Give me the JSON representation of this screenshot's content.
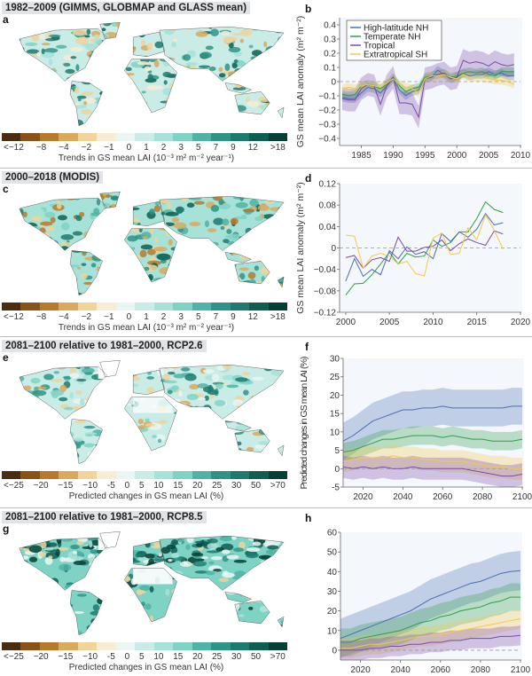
{
  "colors": {
    "high_latitude_nh": "#4a6fb5",
    "temperate_nh": "#2e9e4a",
    "tropical": "#7a4aa8",
    "extratropical_sh": "#f2c94c",
    "title_bg": "#e1e4e7",
    "colorbar": [
      "#4a2c10",
      "#8a5214",
      "#b87a2a",
      "#d9a95c",
      "#f0d49a",
      "#f7ecd4",
      "#eaf6f3",
      "#c9ece6",
      "#a7e2d8",
      "#7fd3c5",
      "#4fb3a5",
      "#2f9488",
      "#1d7a6e",
      "#0e5e52",
      "#063f35"
    ]
  },
  "rows": [
    {
      "title": "1982–2009 (GIMMS, GLOBMAP and GLASS mean)",
      "map_label": "a",
      "chart_label": "b",
      "colorbar_ticks": [
        "<−12",
        "−8",
        "−4",
        "−2",
        "−1",
        "0",
        "1",
        "2",
        "3",
        "5",
        "7",
        "9",
        "12",
        ">18"
      ],
      "colorbar_caption": "Trends in GS mean LAI (10⁻³ m² m⁻² year⁻¹)"
    },
    {
      "title": "2000–2018 (MODIS)",
      "map_label": "c",
      "chart_label": "d",
      "colorbar_ticks": [
        "<−12",
        "−8",
        "−4",
        "−2",
        "−1",
        "0",
        "1",
        "2",
        "3",
        "5",
        "7",
        "9",
        "12",
        ">18"
      ],
      "colorbar_caption": "Trends in GS mean LAI (10⁻³ m² m⁻² year⁻¹)"
    },
    {
      "title": "2081–2100 relative to 1981–2000, RCP2.6",
      "map_label": "e",
      "chart_label": "f",
      "colorbar_ticks": [
        "<−25",
        "−20",
        "−15",
        "−10",
        "-5",
        "0",
        "5",
        "10",
        "15",
        "20",
        "25",
        "30",
        "50",
        ">70"
      ],
      "colorbar_caption": "Predicted changes in GS mean LAI (%)"
    },
    {
      "title": "2081–2100 relative to 1981–2000, RCP8.5",
      "map_label": "g",
      "chart_label": "h",
      "colorbar_ticks": [
        "<−25",
        "−20",
        "−15",
        "−10",
        "-5",
        "0",
        "5",
        "10",
        "15",
        "20",
        "25",
        "30",
        "50",
        ">70"
      ],
      "colorbar_caption": "Predicted changes in GS mean LAI (%)"
    }
  ],
  "chart_data": [
    {
      "id": "b",
      "type": "line",
      "ylabel": "GS mean LAI anomaly (m² m⁻²)",
      "xlim": [
        1982,
        2010
      ],
      "ylim": [
        -0.45,
        0.45
      ],
      "xticks": [
        1985,
        1990,
        1995,
        2000,
        2005,
        2010
      ],
      "yticks": [
        0.4,
        0.3,
        0.2,
        0.1,
        0,
        -0.1,
        -0.2,
        -0.3,
        -0.4
      ],
      "ytick_labels": [
        "0.4",
        "0.3",
        "0.2",
        "0.1",
        "0",
        "−0.1",
        "−0.2",
        "−0.3",
        "−0.4"
      ],
      "legend": "top-left",
      "zero_line": true,
      "x": [
        1982,
        1983,
        1984,
        1985,
        1986,
        1987,
        1988,
        1989,
        1990,
        1991,
        1992,
        1993,
        1994,
        1995,
        1996,
        1997,
        1998,
        1999,
        2000,
        2001,
        2002,
        2003,
        2004,
        2005,
        2006,
        2007,
        2008,
        2009
      ],
      "series": [
        {
          "name": "High-latitude NH",
          "color_key": "high_latitude_nh",
          "band": 0.03,
          "values": [
            -0.11,
            -0.12,
            -0.12,
            -0.08,
            -0.04,
            -0.05,
            -0.08,
            -0.03,
            0.02,
            -0.06,
            -0.1,
            -0.07,
            -0.06,
            0.02,
            0.03,
            0.08,
            0.05,
            0.02,
            0.03,
            0.06,
            0.04,
            0.05,
            0.05,
            0.07,
            0.05,
            0.06,
            0.04,
            0.04
          ]
        },
        {
          "name": "Temperate NH",
          "color_key": "temperate_nh",
          "band": 0.03,
          "values": [
            -0.09,
            -0.1,
            -0.09,
            -0.03,
            -0.02,
            -0.03,
            -0.05,
            -0.02,
            0.03,
            -0.03,
            -0.07,
            -0.05,
            -0.04,
            0.03,
            0.04,
            0.05,
            0.06,
            0.03,
            0.04,
            0.06,
            0.07,
            0.06,
            0.07,
            0.05,
            0.04,
            0.07,
            0.07,
            0.07
          ]
        },
        {
          "name": "Tropical",
          "color_key": "tropical",
          "band": 0.08,
          "values": [
            -0.12,
            -0.13,
            -0.13,
            -0.05,
            -0.02,
            -0.03,
            -0.16,
            -0.03,
            0.03,
            -0.15,
            -0.15,
            -0.16,
            -0.25,
            0.02,
            0.03,
            0.05,
            0.06,
            0.02,
            0.03,
            0.15,
            0.13,
            0.14,
            0.13,
            0.11,
            0.14,
            0.12,
            0.11,
            0.12
          ]
        },
        {
          "name": "Extratropical SH",
          "color_key": "extratropical_sh",
          "band": 0.03,
          "values": [
            -0.05,
            -0.04,
            -0.05,
            -0.03,
            -0.02,
            -0.03,
            -0.04,
            -0.01,
            0.02,
            -0.02,
            -0.04,
            -0.05,
            -0.08,
            0.02,
            0.04,
            0.04,
            0.05,
            0.03,
            0.02,
            0.05,
            0.03,
            0.03,
            0.03,
            0.02,
            0.01,
            0.01,
            0.0,
            -0.02
          ]
        }
      ]
    },
    {
      "id": "d",
      "type": "line",
      "ylabel": "GS mean LAI anomaly (m² m⁻²)",
      "xlim": [
        1999.3,
        2020
      ],
      "ylim": [
        -0.12,
        0.12
      ],
      "xticks": [
        2000,
        2005,
        2010,
        2015,
        2020
      ],
      "yticks": [
        0.12,
        0.08,
        0.04,
        0,
        -0.04,
        -0.08,
        -0.12
      ],
      "ytick_labels": [
        "0.12",
        "0.08",
        "0.04",
        "0",
        "−0.04",
        "−0.08",
        "−0.12"
      ],
      "zero_line": true,
      "x": [
        2000,
        2001,
        2002,
        2003,
        2004,
        2005,
        2006,
        2007,
        2008,
        2009,
        2010,
        2011,
        2012,
        2013,
        2014,
        2015,
        2016,
        2017,
        2018
      ],
      "series": [
        {
          "color_key": "temperate_nh",
          "values": [
            -0.088,
            -0.067,
            -0.066,
            -0.05,
            -0.03,
            -0.008,
            -0.03,
            -0.01,
            -0.017,
            -0.015,
            0.015,
            0.003,
            0.01,
            0.03,
            0.03,
            0.055,
            0.086,
            0.072,
            0.066
          ]
        },
        {
          "color_key": "high_latitude_nh",
          "values": [
            -0.062,
            -0.02,
            -0.053,
            -0.04,
            -0.05,
            -0.005,
            -0.02,
            0.002,
            -0.012,
            -0.007,
            -0.02,
            0.027,
            0.012,
            0.03,
            0.02,
            0.035,
            0.064,
            0.043,
            0.047
          ]
        },
        {
          "color_key": "tropical",
          "values": [
            -0.018,
            -0.014,
            -0.038,
            -0.022,
            -0.018,
            -0.025,
            0.02,
            -0.006,
            -0.006,
            0.001,
            0.003,
            0.015,
            -0.005,
            0.008,
            0.017,
            0.01,
            0.005,
            0.032,
            0.026
          ]
        },
        {
          "color_key": "extratropical_sh",
          "values": [
            0.024,
            0.022,
            -0.038,
            -0.015,
            -0.01,
            -0.015,
            -0.03,
            -0.025,
            -0.048,
            -0.052,
            0.018,
            0.028,
            -0.012,
            -0.01,
            0.038,
            0.015,
            0.062,
            0.033,
            -0.002
          ]
        }
      ]
    },
    {
      "id": "f",
      "type": "line",
      "ylabel": "Predicted changes in GS mean LAI (%)",
      "xlim": [
        2010,
        2100
      ],
      "ylim": [
        -5,
        30
      ],
      "xticks": [
        2020,
        2040,
        2060,
        2080,
        2100
      ],
      "yticks": [
        30,
        25,
        20,
        15,
        10,
        5,
        0,
        -5
      ],
      "ytick_labels": [
        "30",
        "25",
        "20",
        "15",
        "10",
        "5",
        "0",
        "-5"
      ],
      "zero_line": true,
      "x": [
        2010,
        2015,
        2020,
        2025,
        2030,
        2035,
        2040,
        2045,
        2050,
        2055,
        2060,
        2065,
        2070,
        2075,
        2080,
        2085,
        2090,
        2095,
        2100
      ],
      "series": [
        {
          "color_key": "high_latitude_nh",
          "band": 5,
          "values": [
            7.5,
            9,
            11,
            13,
            14,
            15,
            16,
            16,
            16.5,
            16.5,
            17,
            16.5,
            16.5,
            16.5,
            16.5,
            16.5,
            16.5,
            17,
            17
          ]
        },
        {
          "color_key": "temperate_nh",
          "band": 2.5,
          "values": [
            4.5,
            5,
            6,
            7,
            8,
            8,
            8.5,
            9,
            9,
            9,
            8.5,
            9,
            8.5,
            8,
            8,
            7.5,
            7.5,
            7.5,
            8
          ]
        },
        {
          "color_key": "extratropical_sh",
          "band": 3,
          "values": [
            2,
            2.5,
            3,
            3,
            3,
            3.5,
            3,
            3,
            2.5,
            2.5,
            2,
            2,
            2,
            1.5,
            1,
            0.5,
            0.5,
            0,
            0
          ]
        },
        {
          "color_key": "tropical",
          "band": 3,
          "values": [
            0.5,
            0,
            0.5,
            0,
            0.5,
            0,
            0,
            0.5,
            0,
            0,
            0,
            0,
            0,
            -0.5,
            -1,
            -1.5,
            -2,
            -2,
            -1.5
          ]
        }
      ]
    },
    {
      "id": "h",
      "type": "line",
      "ylabel": "",
      "xlim": [
        2010,
        2100
      ],
      "ylim": [
        -5,
        60
      ],
      "xticks": [
        2020,
        2040,
        2060,
        2080,
        2100
      ],
      "yticks": [
        60,
        50,
        40,
        30,
        20,
        10,
        0
      ],
      "ytick_labels": [
        "60",
        "50",
        "40",
        "30",
        "20",
        "10",
        "0"
      ],
      "zero_line": true,
      "x": [
        2010,
        2015,
        2020,
        2025,
        2030,
        2035,
        2040,
        2045,
        2050,
        2055,
        2060,
        2065,
        2070,
        2075,
        2080,
        2085,
        2090,
        2095,
        2100
      ],
      "series": [
        {
          "color_key": "high_latitude_nh",
          "band": 10,
          "values": [
            6,
            8,
            10,
            12,
            14,
            16,
            18,
            20,
            23,
            26,
            28,
            30,
            32,
            34,
            35,
            37,
            39,
            40,
            40.5
          ]
        },
        {
          "color_key": "temperate_nh",
          "band": 7,
          "values": [
            4,
            4,
            6,
            7,
            8,
            9,
            10,
            12,
            14,
            15,
            17,
            18,
            20,
            21,
            22,
            24,
            25,
            27,
            27
          ]
        },
        {
          "color_key": "extratropical_sh",
          "band": 5,
          "values": [
            1,
            1,
            2,
            3,
            3,
            4,
            5,
            6,
            7,
            7,
            8,
            9,
            10,
            11,
            12,
            13,
            14,
            15,
            16
          ]
        },
        {
          "color_key": "tropical",
          "band": 5,
          "values": [
            0,
            0,
            0,
            1,
            1,
            2,
            2,
            3,
            3,
            4,
            4,
            5,
            5,
            6,
            6,
            6,
            7,
            7,
            7.5
          ]
        }
      ]
    }
  ]
}
